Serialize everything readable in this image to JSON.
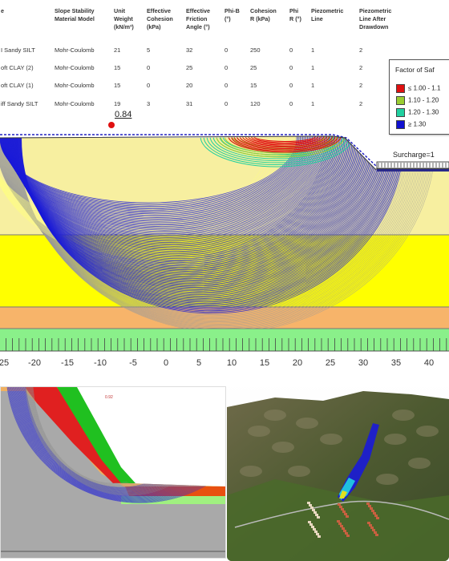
{
  "table": {
    "headers": [
      "e",
      "Slope Stability\nMaterial Model",
      "Unit\nWeight\n(kN/m³)",
      "Effective\nCohesion\n(kPa)",
      "Effective\nFriction\nAngle (°)",
      "Phi-B\n(°)",
      "Cohesion\nR (kPa)",
      "Phi\nR (°)",
      "Piezometric\nLine",
      "Piezometric\nLine After\nDrawdown"
    ],
    "rows": [
      [
        "I Sandy SILT",
        "Mohr-Coulomb",
        "21",
        "5",
        "32",
        "0",
        "250",
        "0",
        "1",
        "2"
      ],
      [
        "oft CLAY (2)",
        "Mohr-Coulomb",
        "15",
        "0",
        "25",
        "0",
        "25",
        "0",
        "1",
        "2"
      ],
      [
        "oft CLAY (1)",
        "Mohr-Coulomb",
        "15",
        "0",
        "20",
        "0",
        "15",
        "0",
        "1",
        "2"
      ],
      [
        "iff Sandy SILT",
        "Mohr-Coulomb",
        "19",
        "3",
        "31",
        "0",
        "120",
        "0",
        "1",
        "2"
      ]
    ]
  },
  "legend": {
    "title": "Factor of Saf",
    "items": [
      {
        "label": "≤ 1.00 - 1.1",
        "color": "#e01010"
      },
      {
        "label": "1.10 - 1.20",
        "color": "#9acd32"
      },
      {
        "label": "1.20 - 1.30",
        "color": "#20d0a0"
      },
      {
        "label": "≥ 1.30",
        "color": "#1010d0"
      }
    ]
  },
  "critical_fos": "0.84",
  "surcharge_label": "Surcharge=1",
  "axis_ticks": [
    "25",
    "-20",
    "-15",
    "-10",
    "-5",
    "0",
    "5",
    "10",
    "15",
    "20",
    "25",
    "30",
    "35",
    "40"
  ],
  "colors": {
    "layer_top": "#f7efa0",
    "layer_mid": "#ffff00",
    "layer_orange": "#f7b46a",
    "layer_green": "#8af08a",
    "slip_blue": "#1a1ad8",
    "slip_gray": "#9a9a9a"
  },
  "small_label": "0.92"
}
